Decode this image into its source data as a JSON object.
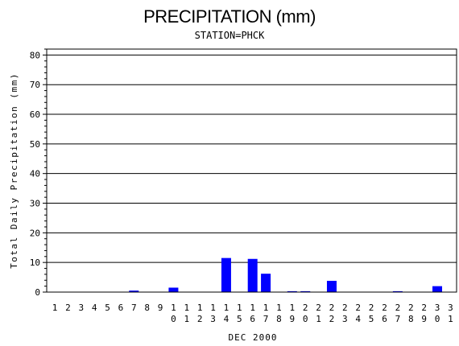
{
  "chart_data": {
    "type": "bar",
    "title": "PRECIPITATION (mm)",
    "subtitle": "STATION=PHCK",
    "xlabel": "DEC 2000",
    "ylabel": "Total Daily Precipitation (mm)",
    "ylim": [
      0,
      82
    ],
    "yticks": [
      0,
      10,
      20,
      30,
      40,
      50,
      60,
      70,
      80
    ],
    "grid": true,
    "bar_color": "#0000ff",
    "categories": [
      "1",
      "2",
      "3",
      "4",
      "5",
      "6",
      "7",
      "8",
      "9",
      "10",
      "11",
      "12",
      "13",
      "14",
      "15",
      "16",
      "17",
      "18",
      "19",
      "20",
      "21",
      "22",
      "23",
      "24",
      "25",
      "26",
      "27",
      "28",
      "29",
      "30",
      "31"
    ],
    "values": [
      0,
      0,
      0,
      0,
      0,
      0,
      0.5,
      0,
      0,
      1.5,
      0,
      0,
      0,
      11.5,
      0,
      11.2,
      6.2,
      0,
      0.3,
      0.3,
      0,
      3.8,
      0,
      0,
      0,
      0,
      0.3,
      0,
      0,
      2.0,
      0
    ]
  }
}
